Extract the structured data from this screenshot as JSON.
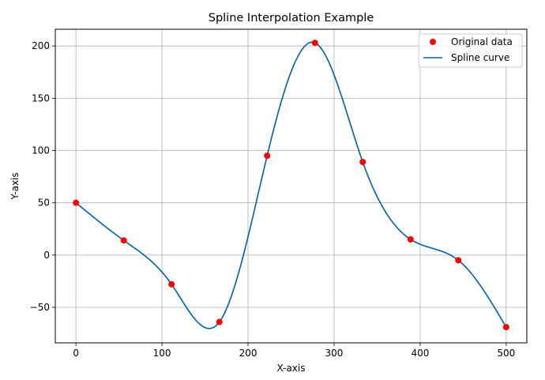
{
  "chart_data": {
    "type": "line",
    "title": "Spline Interpolation Example",
    "xlabel": "X-axis",
    "ylabel": "Y-axis",
    "xlim": [
      -24,
      524
    ],
    "ylim": [
      -84,
      216
    ],
    "xticks": [
      0,
      100,
      200,
      300,
      400,
      500
    ],
    "yticks": [
      -50,
      0,
      50,
      100,
      150,
      200
    ],
    "grid": true,
    "legend_position": "top-right",
    "series": [
      {
        "name": "Original data",
        "kind": "scatter",
        "color": "#ff0000",
        "x": [
          0,
          55.6,
          111.1,
          166.7,
          222.2,
          277.8,
          333.3,
          388.9,
          444.4,
          500
        ],
        "y": [
          50,
          14,
          -28,
          -64,
          95,
          203,
          89,
          15,
          -5,
          -69
        ]
      },
      {
        "name": "Spline curve",
        "kind": "line",
        "color": "#0060ad",
        "interpolation": "cubic-spline",
        "x": [
          0,
          55.6,
          111.1,
          166.7,
          222.2,
          277.8,
          333.3,
          388.9,
          444.4,
          500
        ],
        "y": [
          50,
          14,
          -28,
          -64,
          95,
          203,
          89,
          15,
          -5,
          -69
        ]
      }
    ]
  }
}
